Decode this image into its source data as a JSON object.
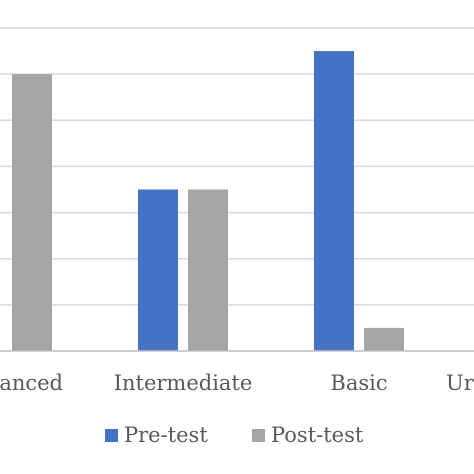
{
  "chart_data": {
    "type": "bar",
    "categories": [
      "Advanced",
      "Intermediate",
      "Basic",
      "Unsatisfactory"
    ],
    "visible_category_labels": [
      "anced",
      "Intermediate",
      "Basic",
      "Ur"
    ],
    "series": [
      {
        "name": "Pre-test",
        "color": "#4472C4",
        "values": [
          null,
          7,
          13,
          0
        ]
      },
      {
        "name": "Post-test",
        "color": "#A5A5A5",
        "values": [
          12,
          7,
          1,
          0
        ]
      }
    ],
    "ylim": [
      0,
      14
    ],
    "grid": true,
    "legend_position": "bottom"
  }
}
